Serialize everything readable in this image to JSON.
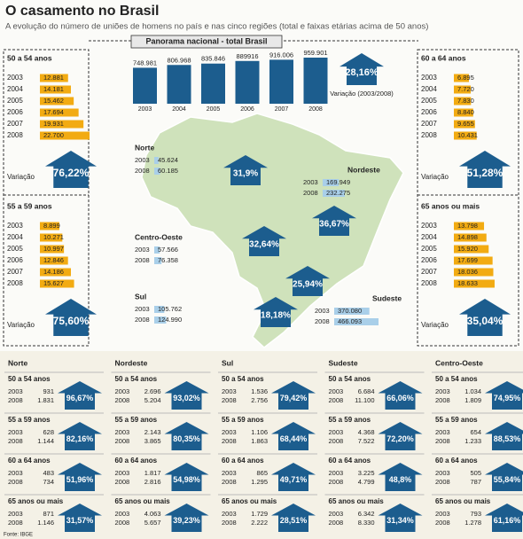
{
  "header": {
    "title": "O casamento no Brasil",
    "subtitle": "A evolução do número de uniões de homens no país e nas cinco regiões (total e faixas etárias acima de 50 anos)"
  },
  "years": [
    "2003",
    "2004",
    "2005",
    "2006",
    "2007",
    "2008"
  ],
  "variation_label": "Variação",
  "national": {
    "title": "Panorama nacional - total Brasil",
    "values": [
      748981,
      806968,
      835846,
      889916,
      916006,
      959901
    ],
    "value_labels": [
      "748.981",
      "806.968",
      "835.846",
      "889916",
      "916.006",
      "959.901"
    ],
    "variation": "28,16%",
    "variation_caption": "Variação (2003/2008)"
  },
  "age_groups": [
    {
      "name": "50 a 54 anos",
      "values": [
        12881,
        14181,
        15462,
        17694,
        19931,
        22700
      ],
      "value_labels": [
        "12.881",
        "14.181",
        "15.462",
        "17.694",
        "19.931",
        "22.700"
      ],
      "variation": "76,22%"
    },
    {
      "name": "55 a 59 anos",
      "values": [
        8899,
        10271,
        10997,
        12846,
        14186,
        15627
      ],
      "value_labels": [
        "8.899",
        "10.271",
        "10.997",
        "12.846",
        "14.186",
        "15.627"
      ],
      "variation": "75,60%"
    },
    {
      "name": "60 a 64 anos",
      "values": [
        6895,
        7720,
        7830,
        8840,
        9655,
        10431
      ],
      "value_labels": [
        "6.895",
        "7.720",
        "7.830",
        "8.840",
        "9.655",
        "10.431"
      ],
      "variation": "51,28%"
    },
    {
      "name": "65 anos ou mais",
      "values": [
        13798,
        14898,
        15920,
        17699,
        18036,
        18633
      ],
      "value_labels": [
        "13.798",
        "14.898",
        "15.920",
        "17.699",
        "18.036",
        "18.633"
      ],
      "variation": "35,04%"
    }
  ],
  "regions": [
    {
      "name": "Norte",
      "values": [
        45624,
        60185
      ],
      "value_labels": [
        "45.624",
        "60.185"
      ],
      "variation": "31,9%"
    },
    {
      "name": "Nordeste",
      "values": [
        169949,
        232275
      ],
      "value_labels": [
        "169.949",
        "232.275"
      ],
      "variation": "36,67%"
    },
    {
      "name": "Sul",
      "values": [
        105762,
        124990
      ],
      "value_labels": [
        "105.762",
        "124.990"
      ],
      "variation": "18,18%"
    },
    {
      "name": "Sudeste",
      "values": [
        370080,
        466093
      ],
      "value_labels": [
        "370.080",
        "466.093"
      ],
      "variation": "25,94%"
    },
    {
      "name": "Centro-Oeste",
      "values": [
        57566,
        76358
      ],
      "value_labels": [
        "57.566",
        "76.358"
      ],
      "variation": "32,64%"
    }
  ],
  "breakdown": [
    [
      {
        "values": [
          "931",
          "1.831"
        ],
        "variation": "96,67%"
      },
      {
        "values": [
          "628",
          "1.144"
        ],
        "variation": "82,16%"
      },
      {
        "values": [
          "483",
          "734"
        ],
        "variation": "51,96%"
      },
      {
        "values": [
          "871",
          "1.146"
        ],
        "variation": "31,57%"
      }
    ],
    [
      {
        "values": [
          "2.696",
          "5.204"
        ],
        "variation": "93,02%"
      },
      {
        "values": [
          "2.143",
          "3.865"
        ],
        "variation": "80,35%"
      },
      {
        "values": [
          "1.817",
          "2.816"
        ],
        "variation": "54,98%"
      },
      {
        "values": [
          "4.063",
          "5.657"
        ],
        "variation": "39,23%"
      }
    ],
    [
      {
        "values": [
          "1.536",
          "2.756"
        ],
        "variation": "79,42%"
      },
      {
        "values": [
          "1.106",
          "1.863"
        ],
        "variation": "68,44%"
      },
      {
        "values": [
          "865",
          "1.295"
        ],
        "variation": "49,71%"
      },
      {
        "values": [
          "1.729",
          "2.222"
        ],
        "variation": "28,51%"
      }
    ],
    [
      {
        "values": [
          "6.684",
          "11.100"
        ],
        "variation": "66,06%"
      },
      {
        "values": [
          "4.368",
          "7.522"
        ],
        "variation": "72,20%"
      },
      {
        "values": [
          "3.225",
          "4.799"
        ],
        "variation": "48,8%"
      },
      {
        "values": [
          "6.342",
          "8.330"
        ],
        "variation": "31,34%"
      }
    ],
    [
      {
        "values": [
          "1.034",
          "1.809"
        ],
        "variation": "74,95%"
      },
      {
        "values": [
          "654",
          "1.233"
        ],
        "variation": "88,53%"
      },
      {
        "values": [
          "505",
          "787"
        ],
        "variation": "55,84%"
      },
      {
        "values": [
          "793",
          "1.278"
        ],
        "variation": "61,16%"
      }
    ]
  ],
  "source": "Fonte: IBGE"
}
